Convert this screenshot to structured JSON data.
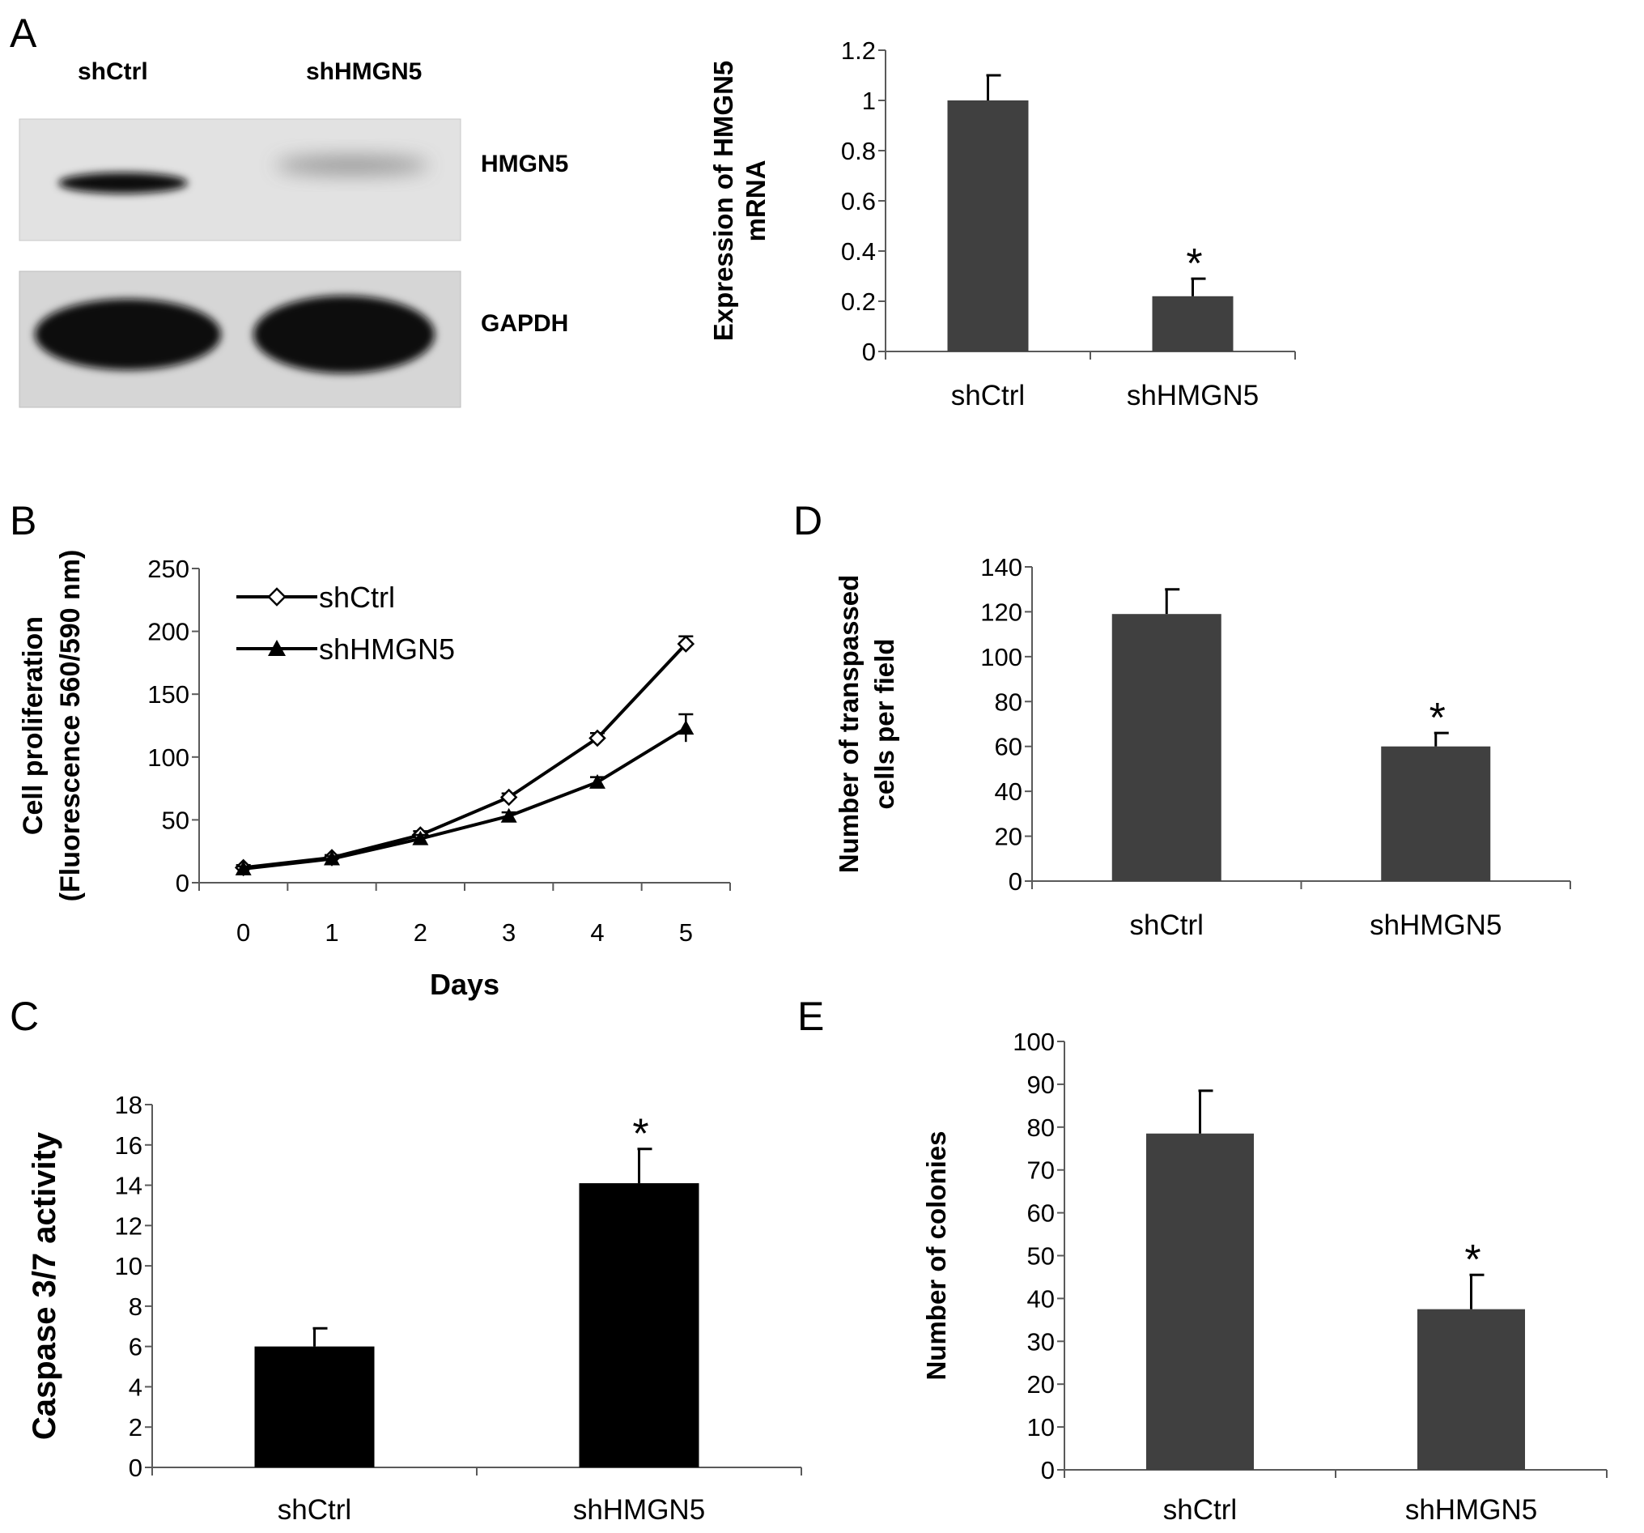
{
  "panel_letters": {
    "a": "A",
    "b": "B",
    "c": "C",
    "d": "D",
    "e": "E"
  },
  "western_blot": {
    "lanes": [
      "shCtrl",
      "shHMGN5"
    ],
    "bands": [
      "HMGN5",
      "GAPDH"
    ]
  },
  "chart_data": [
    {
      "id": "A",
      "type": "bar",
      "categories": [
        "shCtrl",
        "shHMGN5"
      ],
      "values": [
        1.0,
        0.22
      ],
      "errors": [
        0.1,
        0.07
      ],
      "annotations": [
        "",
        "*"
      ],
      "ylabel": [
        "Expression of HMGN5",
        "mRNA"
      ],
      "ylim": [
        0,
        1.2
      ],
      "yticks": [
        0,
        0.2,
        0.4,
        0.6,
        0.8,
        1,
        1.2
      ],
      "ytick_labels": [
        "0",
        "0.2",
        "0.4",
        "0.6",
        "0.8",
        "1",
        "1.2"
      ],
      "bar_color": "#404040"
    },
    {
      "id": "B",
      "type": "line",
      "x": [
        0,
        1,
        2,
        3,
        4,
        5
      ],
      "xlabel": "Days",
      "ylabel": [
        "Cell proliferation",
        "(Fluorescence 560/590 nm)"
      ],
      "ylim": [
        0,
        250
      ],
      "yticks": [
        0,
        50,
        100,
        150,
        200,
        250
      ],
      "ytick_labels": [
        "0",
        "50",
        "100",
        "150",
        "200",
        "250"
      ],
      "xtick_labels": [
        "0",
        "1",
        "2",
        "3",
        "4",
        "5"
      ],
      "legend": "top-left",
      "series": [
        {
          "name": "shCtrl",
          "marker": "diamond-open",
          "values": [
            12,
            20,
            38,
            68,
            115,
            190
          ],
          "errors": [
            2,
            2,
            3,
            3,
            4,
            6
          ]
        },
        {
          "name": "shHMGN5",
          "marker": "triangle-filled",
          "values": [
            11,
            19,
            35,
            53,
            80,
            123
          ],
          "errors": [
            2,
            2,
            3,
            3,
            4,
            11
          ]
        }
      ]
    },
    {
      "id": "C",
      "type": "bar",
      "categories": [
        "shCtrl",
        "shHMGN5"
      ],
      "values": [
        6.0,
        14.1
      ],
      "errors": [
        0.9,
        1.7
      ],
      "annotations": [
        "",
        "*"
      ],
      "ylabel": [
        "Caspase 3/7 activity"
      ],
      "ylim": [
        0,
        18
      ],
      "yticks": [
        0,
        2,
        4,
        6,
        8,
        10,
        12,
        14,
        16,
        18
      ],
      "ytick_labels": [
        "0",
        "2",
        "4",
        "6",
        "8",
        "10",
        "12",
        "14",
        "16",
        "18"
      ],
      "bar_color": "#000000"
    },
    {
      "id": "D",
      "type": "bar",
      "categories": [
        "shCtrl",
        "shHMGN5"
      ],
      "values": [
        119,
        60
      ],
      "errors": [
        11,
        6
      ],
      "annotations": [
        "",
        "*"
      ],
      "ylabel": [
        "Number of transpassed",
        "cells per field"
      ],
      "ylim": [
        0,
        140
      ],
      "yticks": [
        0,
        20,
        40,
        60,
        80,
        100,
        120,
        140
      ],
      "ytick_labels": [
        "0",
        "20",
        "40",
        "60",
        "80",
        "100",
        "120",
        "140"
      ],
      "bar_color": "#404040"
    },
    {
      "id": "E",
      "type": "bar",
      "categories": [
        "shCtrl",
        "shHMGN5"
      ],
      "values": [
        78.5,
        37.5
      ],
      "errors": [
        10,
        8
      ],
      "annotations": [
        "",
        "*"
      ],
      "ylabel": [
        "Number of colonies"
      ],
      "ylim": [
        0,
        100
      ],
      "yticks": [
        0,
        10,
        20,
        30,
        40,
        50,
        60,
        70,
        80,
        90,
        100
      ],
      "ytick_labels": [
        "0",
        "10",
        "20",
        "30",
        "40",
        "50",
        "60",
        "70",
        "80",
        "90",
        "100"
      ],
      "bar_color": "#404040"
    }
  ]
}
